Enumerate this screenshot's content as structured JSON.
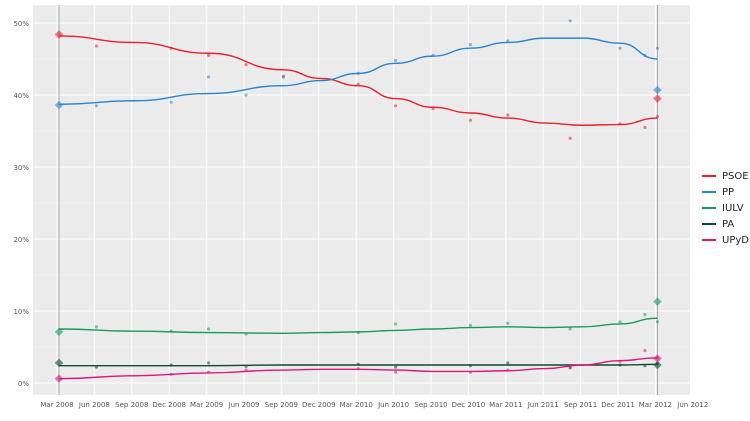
{
  "chart_data": {
    "type": "line",
    "title": "",
    "xlabel": "",
    "ylabel": "",
    "ylim": [
      0,
      52
    ],
    "yticks": [
      "0%",
      "10%",
      "20%",
      "30%",
      "40%",
      "50%"
    ],
    "ytick_values": [
      0,
      10,
      20,
      30,
      40,
      50
    ],
    "xticks": [
      "Mar 2008",
      "Jun 2008",
      "Sep 2008",
      "Dec 2008",
      "Mar 2009",
      "Jun 2009",
      "Sep 2009",
      "Dec 2009",
      "Mar 2010",
      "Jun 2010",
      "Sep 2010",
      "Dec 2010",
      "Mar 2011",
      "Jun 2011",
      "Sep 2011",
      "Dec 2011",
      "Mar 2012",
      "Jun 2012"
    ],
    "grid": true,
    "legend_position": "right",
    "election_dates": [
      "2008-03",
      "2012-03"
    ],
    "trend_x": [
      "2008-03",
      "2008-09",
      "2009-03",
      "2009-09",
      "2009-12",
      "2010-03",
      "2010-06",
      "2010-09",
      "2010-12",
      "2011-03",
      "2011-06",
      "2011-09",
      "2011-12",
      "2012-03"
    ],
    "series": [
      {
        "name": "PSOE",
        "color": "#e8212b",
        "trend": [
          48.2,
          47.3,
          45.8,
          43.5,
          42.3,
          41.3,
          39.5,
          38.3,
          37.5,
          36.8,
          36.1,
          35.8,
          35.9,
          36.8
        ],
        "election": [
          48.4,
          39.5
        ],
        "polls": [
          [
            "2008-06",
            46.8
          ],
          [
            "2008-12",
            46.5
          ],
          [
            "2009-03",
            45.5
          ],
          [
            "2009-06",
            44.2
          ],
          [
            "2009-09",
            42.6
          ],
          [
            "2010-03",
            41.5
          ],
          [
            "2010-06",
            38.5
          ],
          [
            "2010-09",
            38.1
          ],
          [
            "2010-12",
            36.5
          ],
          [
            "2011-03",
            37.2
          ],
          [
            "2011-08",
            34.0
          ],
          [
            "2011-12",
            36.0
          ],
          [
            "2012-02",
            35.5
          ],
          [
            "2012-03",
            37.0
          ]
        ]
      },
      {
        "name": "PP",
        "color": "#2b83d0",
        "trend": [
          38.7,
          39.2,
          40.2,
          41.3,
          42.0,
          43.0,
          44.4,
          45.4,
          46.5,
          47.3,
          47.9,
          47.9,
          47.2,
          45.0
        ],
        "election": [
          38.6,
          40.7
        ],
        "polls": [
          [
            "2008-06",
            38.5
          ],
          [
            "2008-12",
            39.0
          ],
          [
            "2009-03",
            42.5
          ],
          [
            "2009-06",
            40.0
          ],
          [
            "2009-09",
            42.5
          ],
          [
            "2010-03",
            43.0
          ],
          [
            "2010-06",
            44.8
          ],
          [
            "2010-09",
            45.5
          ],
          [
            "2010-12",
            47.0
          ],
          [
            "2011-03",
            47.5
          ],
          [
            "2011-08",
            50.3
          ],
          [
            "2011-12",
            46.5
          ],
          [
            "2012-02",
            45.5
          ],
          [
            "2012-03",
            46.5
          ]
        ]
      },
      {
        "name": "IULV",
        "color": "#1a9a5a",
        "trend": [
          7.5,
          7.2,
          7.0,
          6.9,
          7.0,
          7.1,
          7.3,
          7.5,
          7.7,
          7.8,
          7.7,
          7.8,
          8.2,
          9.0
        ],
        "election": [
          7.1,
          11.3
        ],
        "polls": [
          [
            "2008-06",
            7.8
          ],
          [
            "2008-12",
            7.2
          ],
          [
            "2009-03",
            7.5
          ],
          [
            "2009-06",
            6.8
          ],
          [
            "2010-03",
            7.0
          ],
          [
            "2010-06",
            8.2
          ],
          [
            "2010-12",
            8.0
          ],
          [
            "2011-03",
            8.3
          ],
          [
            "2011-08",
            7.5
          ],
          [
            "2011-12",
            8.5
          ],
          [
            "2012-02",
            9.5
          ],
          [
            "2012-03",
            8.5
          ]
        ]
      },
      {
        "name": "PA",
        "color": "#0b4d2a",
        "trend": [
          2.4,
          2.4,
          2.4,
          2.5,
          2.5,
          2.5,
          2.5,
          2.5,
          2.5,
          2.5,
          2.5,
          2.5,
          2.5,
          2.6
        ],
        "election": [
          2.8,
          2.5
        ],
        "polls": [
          [
            "2008-06",
            2.2
          ],
          [
            "2008-12",
            2.5
          ],
          [
            "2009-03",
            2.8
          ],
          [
            "2009-06",
            2.3
          ],
          [
            "2010-03",
            2.6
          ],
          [
            "2010-06",
            2.2
          ],
          [
            "2010-12",
            2.4
          ],
          [
            "2011-03",
            2.8
          ],
          [
            "2011-08",
            2.1
          ],
          [
            "2011-12",
            2.5
          ],
          [
            "2012-02",
            2.4
          ],
          [
            "2012-03",
            2.7
          ]
        ]
      },
      {
        "name": "UPyD",
        "color": "#e0147f",
        "trend": [
          0.6,
          1.0,
          1.4,
          1.8,
          1.9,
          1.9,
          1.8,
          1.6,
          1.6,
          1.7,
          2.0,
          2.5,
          3.1,
          3.5
        ],
        "election": [
          0.6,
          3.4
        ],
        "polls": [
          [
            "2008-12",
            1.2
          ],
          [
            "2009-03",
            1.5
          ],
          [
            "2009-06",
            1.8
          ],
          [
            "2010-03",
            2.0
          ],
          [
            "2010-06",
            1.5
          ],
          [
            "2010-12",
            1.5
          ],
          [
            "2011-03",
            1.8
          ],
          [
            "2011-08",
            2.2
          ],
          [
            "2011-12",
            3.0
          ],
          [
            "2012-02",
            4.5
          ],
          [
            "2012-03",
            3.5
          ]
        ]
      }
    ]
  }
}
